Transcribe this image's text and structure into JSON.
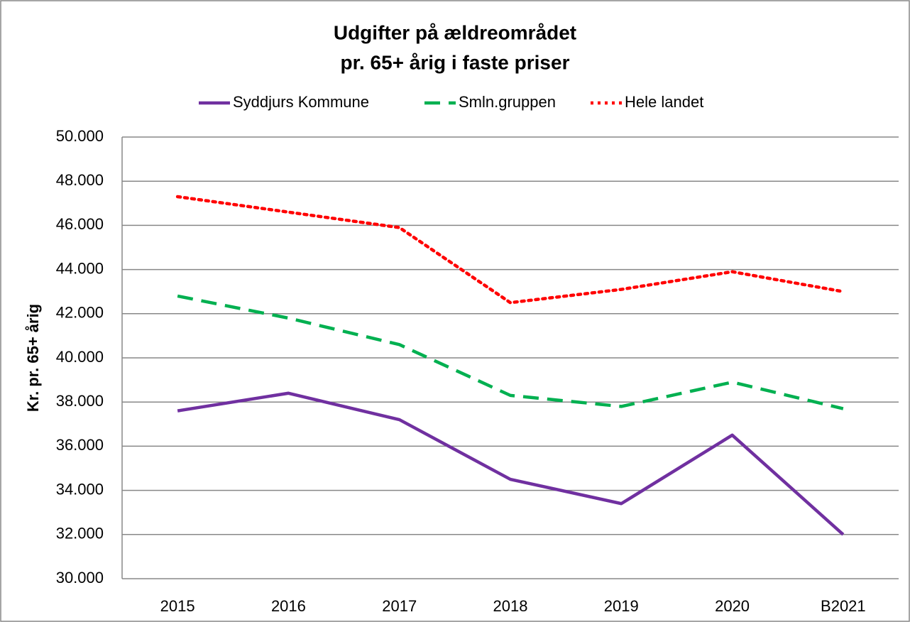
{
  "chart_data": {
    "type": "line",
    "title": [
      "Udgifter på ældreområdet",
      "pr. 65+ årig i faste priser"
    ],
    "y_label": "Kr. pr. 65+ årig",
    "categories": [
      "2015",
      "2016",
      "2017",
      "2018",
      "2019",
      "2020",
      "B2021"
    ],
    "series": [
      {
        "name": "Syddjurs Kommune",
        "color": "#7030a0",
        "dash": "solid",
        "values": [
          37600,
          38400,
          37200,
          34500,
          33400,
          36500,
          32000
        ]
      },
      {
        "name": "Smln.gruppen",
        "color": "#00b050",
        "dash": "dashed",
        "values": [
          42800,
          41800,
          40600,
          38300,
          37800,
          38900,
          37700
        ]
      },
      {
        "name": "Hele landet",
        "color": "#ff0000",
        "dash": "dotted",
        "values": [
          47300,
          46600,
          45900,
          42500,
          43100,
          43900,
          43000
        ]
      }
    ],
    "ylim": [
      30000,
      50000
    ],
    "yticks": [
      {
        "value": 30000,
        "label": "30.000"
      },
      {
        "value": 32000,
        "label": "32.000"
      },
      {
        "value": 34000,
        "label": "34.000"
      },
      {
        "value": 36000,
        "label": "36.000"
      },
      {
        "value": 38000,
        "label": "38.000"
      },
      {
        "value": 40000,
        "label": "40.000"
      },
      {
        "value": 42000,
        "label": "42.000"
      },
      {
        "value": 44000,
        "label": "44.000"
      },
      {
        "value": 46000,
        "label": "46.000"
      },
      {
        "value": 48000,
        "label": "48.000"
      },
      {
        "value": 50000,
        "label": "50.000"
      }
    ],
    "grid": true,
    "legend": "top"
  }
}
